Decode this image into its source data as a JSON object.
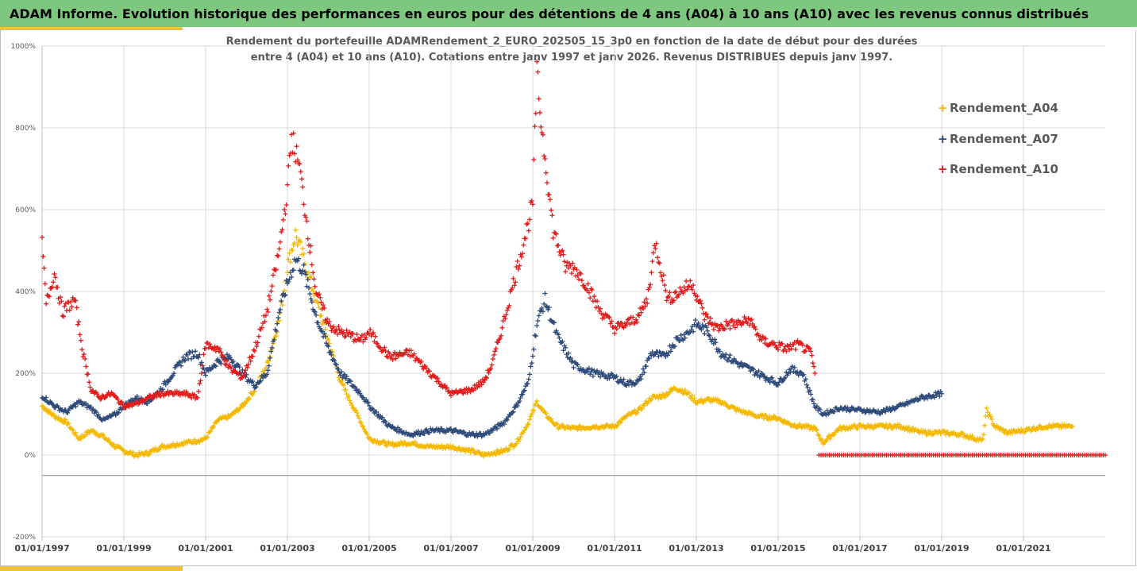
{
  "header": {
    "title": "ADAM Informe. Evolution historique des performances en euros pour des détentions de 4 ans (A04) à 10 ans (A10) avec les revenus connus distribués"
  },
  "colors": {
    "header_bg": "#7dc87e",
    "accent": "#f0c23a",
    "A04": "#f5b800",
    "A07": "#2e4a7a",
    "A10": "#e31b1b"
  },
  "chart_data": {
    "type": "scatter",
    "title_line1": "Rendement du portefeuille ADAMRendement_2_EURO_202505_15_3p0  en fonction de la date de début pour des durées",
    "title_line2": "entre 4 (A04) et 10 ans (A10). Cotations entre janv 1997 et janv 2026. Revenus DISTRIBUES depuis janv 1997.",
    "xlabel": "",
    "ylabel": "",
    "xlim": [
      1997.0,
      2023.0
    ],
    "ylim": [
      -200,
      1000
    ],
    "grid": true,
    "legend_position": "top-right",
    "y_ticks": [
      {
        "value": 1000,
        "label": "1000%"
      },
      {
        "value": 800,
        "label": "800%"
      },
      {
        "value": 600,
        "label": "600%"
      },
      {
        "value": 400,
        "label": "400%"
      },
      {
        "value": 200,
        "label": "200%"
      },
      {
        "value": 0,
        "label": "0%"
      },
      {
        "value": -200,
        "label": "-200%"
      }
    ],
    "x_ticks": [
      {
        "value": 1997,
        "label": "01/01/1997"
      },
      {
        "value": 1999,
        "label": "01/01/1999"
      },
      {
        "value": 2001,
        "label": "01/01/2001"
      },
      {
        "value": 2003,
        "label": "01/01/2003"
      },
      {
        "value": 2005,
        "label": "01/01/2005"
      },
      {
        "value": 2007,
        "label": "01/01/2007"
      },
      {
        "value": 2009,
        "label": "01/01/2009"
      },
      {
        "value": 2011,
        "label": "01/01/2011"
      },
      {
        "value": 2013,
        "label": "01/01/2013"
      },
      {
        "value": 2015,
        "label": "01/01/2015"
      },
      {
        "value": 2017,
        "label": "01/01/2017"
      },
      {
        "value": 2019,
        "label": "01/01/2019"
      },
      {
        "value": 2021,
        "label": "01/01/2021"
      }
    ],
    "series": [
      {
        "name": "Rendement_A04",
        "x": [
          1997.0,
          1997.3,
          1997.6,
          1997.9,
          1998.2,
          1998.5,
          1998.8,
          1999.0,
          1999.3,
          1999.6,
          1999.9,
          2000.2,
          2000.5,
          2000.8,
          2001.0,
          2001.3,
          2001.6,
          2001.9,
          2002.2,
          2002.5,
          2002.8,
          2003.0,
          2003.2,
          2003.4,
          2003.7,
          2004.0,
          2004.3,
          2004.6,
          2004.8,
          2005.0,
          2005.5,
          2006.0,
          2006.5,
          2007.0,
          2007.5,
          2007.8,
          2008.0,
          2008.3,
          2008.6,
          2008.9,
          2009.1,
          2009.3,
          2009.6,
          2010.0,
          2010.5,
          2011.0,
          2011.3,
          2011.6,
          2011.9,
          2012.2,
          2012.5,
          2012.8,
          2013.0,
          2013.3,
          2013.6,
          2014.0,
          2014.5,
          2015.0,
          2015.3,
          2015.6,
          2015.9,
          2016.1,
          2016.5,
          2017.0,
          2017.5,
          2018.0,
          2018.5,
          2019.0,
          2019.5,
          2020.0,
          2020.1,
          2020.3,
          2020.6,
          2021.0,
          2021.5,
          2022.0,
          2022.2
        ],
        "values": [
          120,
          95,
          80,
          40,
          60,
          45,
          20,
          10,
          0,
          5,
          20,
          25,
          30,
          35,
          40,
          85,
          95,
          120,
          160,
          220,
          330,
          460,
          540,
          480,
          380,
          280,
          180,
          120,
          80,
          40,
          25,
          30,
          20,
          20,
          10,
          0,
          5,
          10,
          30,
          80,
          130,
          100,
          70,
          65,
          70,
          70,
          95,
          110,
          140,
          145,
          165,
          150,
          130,
          135,
          130,
          110,
          95,
          90,
          75,
          70,
          65,
          30,
          65,
          70,
          70,
          70,
          55,
          55,
          50,
          35,
          110,
          70,
          55,
          60,
          70,
          70,
          70
        ]
      },
      {
        "name": "Rendement_A07",
        "x": [
          1997.0,
          1997.3,
          1997.6,
          1997.9,
          1998.2,
          1998.5,
          1998.8,
          1999.0,
          1999.3,
          1999.6,
          1999.9,
          2000.2,
          2000.5,
          2000.8,
          2001.0,
          2001.3,
          2001.6,
          2001.9,
          2002.2,
          2002.5,
          2002.8,
          2003.0,
          2003.2,
          2003.4,
          2003.7,
          2004.0,
          2004.3,
          2004.6,
          2004.8,
          2005.0,
          2005.5,
          2006.0,
          2006.5,
          2007.0,
          2007.5,
          2007.8,
          2008.0,
          2008.3,
          2008.6,
          2008.9,
          2009.1,
          2009.3,
          2009.6,
          2010.0,
          2010.5,
          2011.0,
          2011.3,
          2011.6,
          2011.9,
          2012.2,
          2012.5,
          2012.8,
          2013.0,
          2013.3,
          2013.6,
          2014.0,
          2014.5,
          2015.0,
          2015.3,
          2015.6,
          2015.9,
          2016.1,
          2016.5,
          2017.0,
          2017.5,
          2018.0,
          2018.5,
          2019.0
        ],
        "values": [
          145,
          120,
          105,
          130,
          115,
          85,
          100,
          120,
          140,
          130,
          160,
          200,
          240,
          250,
          200,
          230,
          240,
          200,
          170,
          200,
          350,
          420,
          480,
          450,
          340,
          260,
          200,
          170,
          150,
          120,
          70,
          50,
          60,
          60,
          50,
          50,
          60,
          80,
          120,
          180,
          320,
          380,
          290,
          220,
          200,
          190,
          175,
          180,
          250,
          240,
          280,
          300,
          320,
          300,
          250,
          225,
          200,
          175,
          210,
          200,
          120,
          100,
          115,
          110,
          105,
          120,
          140,
          150
        ]
      },
      {
        "name": "Rendement_A10",
        "x": [
          1997.0,
          1997.1,
          1997.3,
          1997.5,
          1997.8,
          1998.0,
          1998.2,
          1998.4,
          1998.7,
          1999.0,
          1999.3,
          1999.6,
          1999.9,
          2000.2,
          2000.5,
          2000.8,
          2001.0,
          2001.3,
          2001.6,
          2001.9,
          2002.2,
          2002.5,
          2002.8,
          2003.0,
          2003.1,
          2003.3,
          2003.5,
          2003.7,
          2004.0,
          2004.3,
          2004.6,
          2004.8,
          2005.0,
          2005.5,
          2006.0,
          2006.5,
          2007.0,
          2007.5,
          2007.8,
          2008.0,
          2008.3,
          2008.6,
          2008.9,
          2009.0,
          2009.1,
          2009.2,
          2009.5,
          2009.8,
          2010.0,
          2010.3,
          2010.6,
          2011.0,
          2011.3,
          2011.6,
          2011.8,
          2012.0,
          2012.3,
          2012.6,
          2012.9,
          2013.2,
          2013.5,
          2013.8,
          2014.0,
          2014.3,
          2014.6,
          2014.9,
          2015.2,
          2015.5,
          2015.8,
          2015.9
        ],
        "values": [
          520,
          370,
          445,
          350,
          380,
          250,
          160,
          140,
          150,
          120,
          125,
          140,
          150,
          150,
          150,
          140,
          270,
          260,
          210,
          190,
          260,
          350,
          500,
          650,
          780,
          700,
          550,
          400,
          320,
          300,
          290,
          280,
          300,
          240,
          250,
          200,
          150,
          160,
          180,
          220,
          330,
          450,
          570,
          620,
          930,
          820,
          550,
          460,
          460,
          420,
          360,
          310,
          320,
          340,
          380,
          520,
          380,
          400,
          420,
          340,
          310,
          320,
          320,
          330,
          280,
          270,
          260,
          270,
          250,
          200
        ]
      },
      {
        "name": "Rendement_A10_zero",
        "x": [
          2016.0,
          2016.5,
          2017.0,
          2017.5,
          2018.0,
          2018.5,
          2019.0,
          2019.5,
          2020.0,
          2020.5,
          2021.0,
          2021.5,
          2022.0,
          2022.5,
          2023.0
        ],
        "values": [
          0,
          0,
          0,
          0,
          0,
          0,
          0,
          0,
          0,
          0,
          0,
          0,
          0,
          0,
          0
        ]
      }
    ],
    "legend": [
      {
        "name": "Rendement_A04",
        "marker": "+"
      },
      {
        "name": "Rendement_A07",
        "marker": "+"
      },
      {
        "name": "Rendement_A10",
        "marker": "+"
      }
    ]
  }
}
